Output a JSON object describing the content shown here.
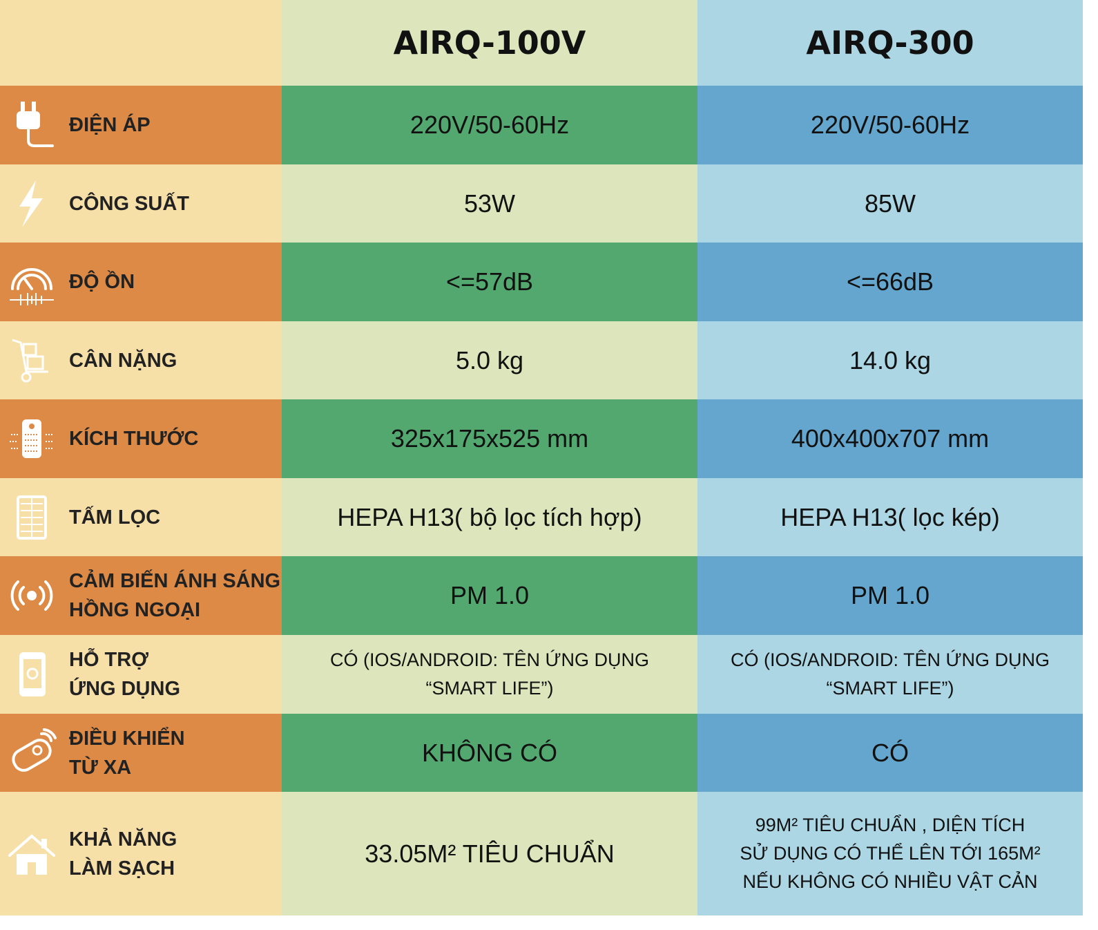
{
  "header": {
    "models": [
      "AIRQ-100V",
      "AIRQ-300"
    ]
  },
  "rows": [
    {
      "label": [
        "ĐIỆN ÁP"
      ],
      "values": [
        [
          "220V/50-60Hz"
        ],
        [
          "220V/50-60Hz"
        ]
      ]
    },
    {
      "label": [
        "CÔNG SUẤT"
      ],
      "values": [
        [
          "53W"
        ],
        [
          "85W"
        ]
      ]
    },
    {
      "label": [
        "ĐỘ ỒN"
      ],
      "values": [
        [
          "<=57dB"
        ],
        [
          "<=66dB"
        ]
      ]
    },
    {
      "label": [
        "CÂN NẶNG"
      ],
      "values": [
        [
          "5.0 kg"
        ],
        [
          "14.0 kg"
        ]
      ]
    },
    {
      "label": [
        "KÍCH THƯỚC"
      ],
      "values": [
        [
          "325x175x525 mm"
        ],
        [
          "400x400x707 mm"
        ]
      ]
    },
    {
      "label": [
        "TẤM LỌC"
      ],
      "values": [
        [
          "HEPA H13( bộ lọc tích hợp)"
        ],
        [
          "HEPA H13( lọc kép)"
        ]
      ]
    },
    {
      "label": [
        "CẢM BIẾN ÁNH SÁNG",
        "HỒNG NGOẠI"
      ],
      "values": [
        [
          "PM 1.0"
        ],
        [
          "PM 1.0"
        ]
      ]
    },
    {
      "label": [
        "HỖ TRỢ",
        "ỨNG DỤNG"
      ],
      "values": [
        [
          "CÓ (IOS/ANDROID: TÊN ỨNG DỤNG",
          "“SMART LIFE”)"
        ],
        [
          "CÓ (IOS/ANDROID: TÊN ỨNG DỤNG",
          "“SMART LIFE”)"
        ]
      ]
    },
    {
      "label": [
        "ĐIỀU KHIỂN",
        "TỪ XA"
      ],
      "values": [
        [
          "KHÔNG CÓ"
        ],
        [
          "CÓ"
        ]
      ]
    },
    {
      "label": [
        "KHẢ NĂNG",
        "LÀM SẠCH"
      ],
      "values": [
        [
          "33.05M² TIÊU CHUẨN"
        ],
        [
          "99M² TIÊU CHUẨN , DIỆN TÍCH",
          "SỬ DỤNG CÓ THỂ LÊN TỚI 165M²",
          "NẾU KHÔNG CÓ NHIỀU VẬT CẢN"
        ]
      ]
    }
  ]
}
